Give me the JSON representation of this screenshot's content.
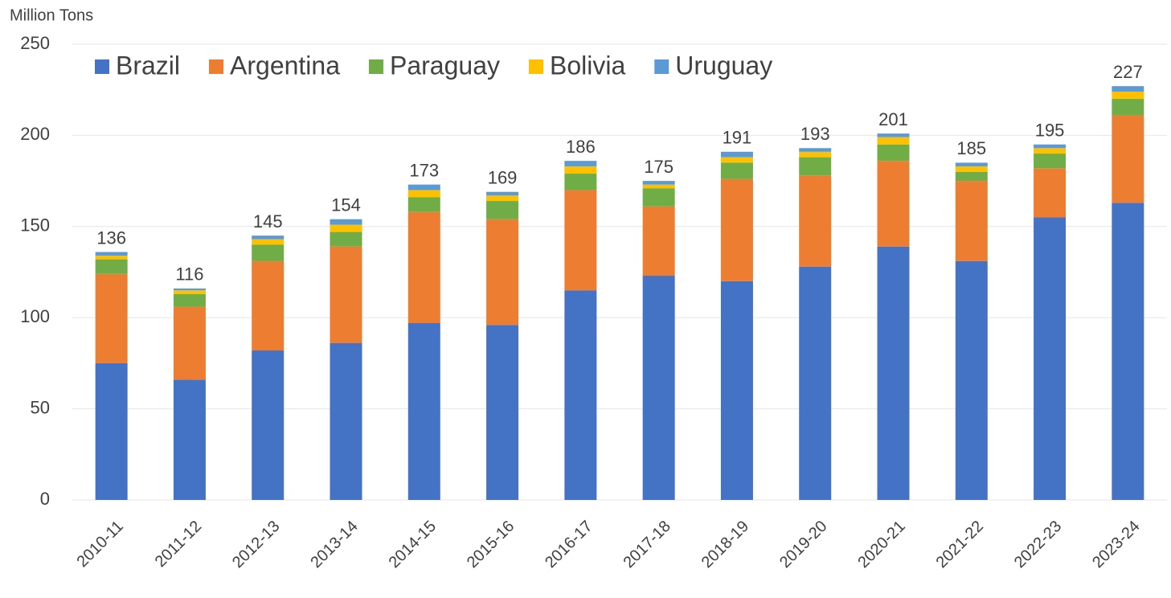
{
  "chart_data": {
    "type": "stacked_bar",
    "y_axis_label": "Million Tons",
    "categories": [
      "2010-11",
      "2011-12",
      "2012-13",
      "2013-14",
      "2014-15",
      "2015-16",
      "2016-17",
      "2017-18",
      "2018-19",
      "2019-20",
      "2020-21",
      "2021-22",
      "2022-23",
      "2023-24"
    ],
    "series": [
      {
        "name": "Brazil",
        "color": "#4472c4",
        "values": [
          75,
          66,
          82,
          86,
          97,
          96,
          115,
          123,
          120,
          128,
          139,
          131,
          155,
          163
        ]
      },
      {
        "name": "Argentina",
        "color": "#ed7d31",
        "values": [
          49,
          40,
          49,
          53,
          61,
          58,
          55,
          38,
          56,
          50,
          47,
          44,
          27,
          48
        ]
      },
      {
        "name": "Paraguay",
        "color": "#70ad47",
        "values": [
          8,
          7,
          9,
          8,
          8,
          10,
          9,
          10,
          9,
          10,
          9,
          5,
          8,
          9
        ]
      },
      {
        "name": "Bolivia",
        "color": "#ffc000",
        "values": [
          2,
          2,
          3,
          4,
          4,
          3,
          4,
          2,
          3,
          3,
          4,
          3,
          3,
          4
        ]
      },
      {
        "name": "Uruguay",
        "color": "#5b9bd5",
        "values": [
          2,
          1,
          2,
          3,
          3,
          2,
          3,
          2,
          3,
          2,
          2,
          2,
          2,
          3
        ]
      }
    ],
    "totals": [
      136,
      116,
      145,
      154,
      173,
      169,
      186,
      175,
      191,
      193,
      201,
      185,
      195,
      227
    ],
    "ylim": [
      0,
      250
    ],
    "yticks": [
      0,
      50,
      100,
      150,
      200,
      250
    ],
    "grid": true,
    "legend": "top"
  }
}
